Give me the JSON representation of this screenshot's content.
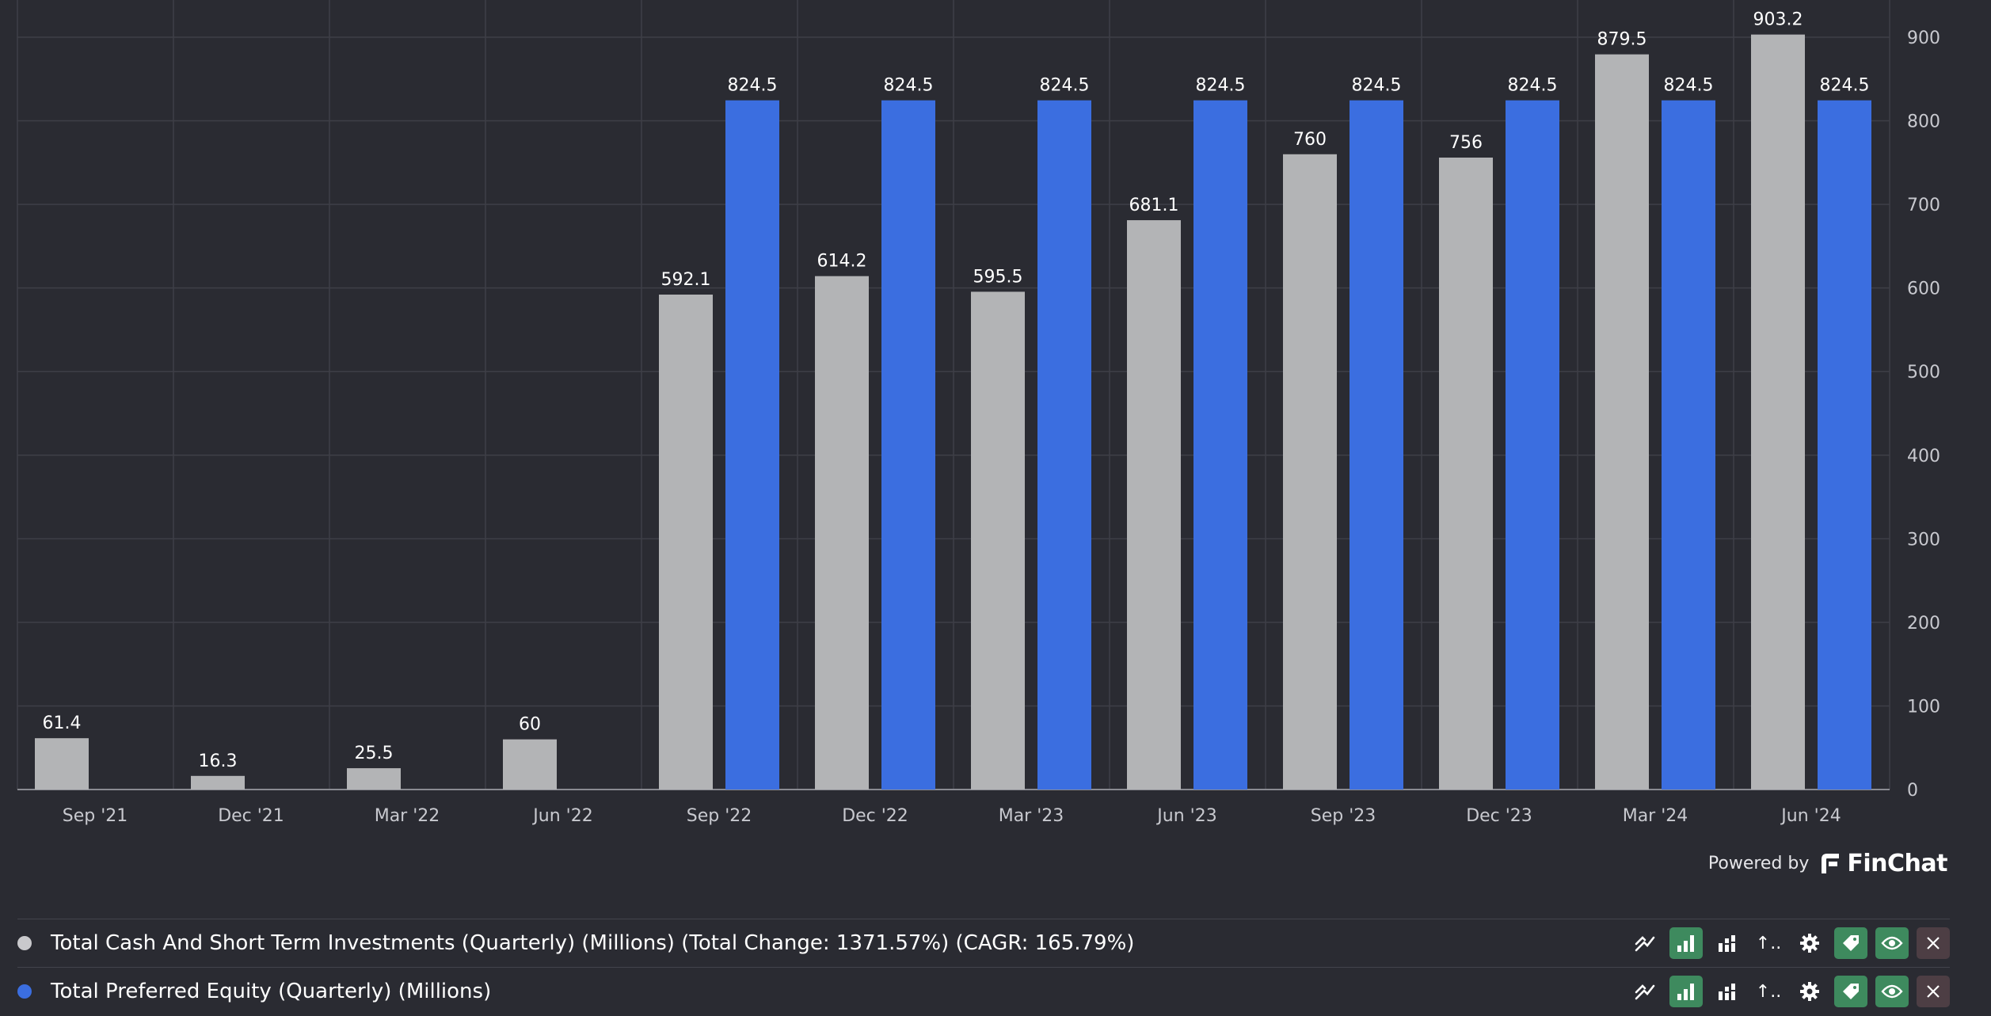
{
  "chart_data": {
    "type": "bar",
    "categories": [
      "Sep '21",
      "Dec '21",
      "Mar '22",
      "Jun '22",
      "Sep '22",
      "Dec '22",
      "Mar '23",
      "Jun '23",
      "Sep '23",
      "Dec '23",
      "Mar '24",
      "Jun '24"
    ],
    "series": [
      {
        "name": "Total Cash And Short Term Investments (Quarterly) (Millions) (Total Change: 1371.57%) (CAGR: 165.79%)",
        "color": "#b3b4b6",
        "values": [
          61.4,
          16.3,
          25.5,
          60,
          592.1,
          614.2,
          595.5,
          681.1,
          760,
          756,
          879.5,
          903.2
        ]
      },
      {
        "name": "Total Preferred Equity (Quarterly) (Millions)",
        "color": "#3b6ee0",
        "values": [
          null,
          null,
          null,
          null,
          824.5,
          824.5,
          824.5,
          824.5,
          824.5,
          824.5,
          824.5,
          824.5
        ]
      }
    ],
    "y_ticks": [
      0,
      100,
      200,
      300,
      400,
      500,
      600,
      700,
      800,
      900
    ],
    "ylim": [
      0,
      900
    ],
    "y_axis_side": "right",
    "grid": true,
    "legend_placement": "bottom"
  },
  "branding": {
    "powered_by": "Powered by",
    "brand": "FinChat"
  },
  "legend": [
    {
      "label": "Total Cash And Short Term Investments (Quarterly) (Millions) (Total Change: 1371.57%) (CAGR: 165.79%)",
      "color": "#c9c9cc"
    },
    {
      "label": "Total Preferred Equity (Quarterly) (Millions)",
      "color": "#3b6ee0"
    }
  ],
  "controls": {
    "line": "line-chart-icon",
    "bar": "bar-chart-icon",
    "stacked": "stacked-bar-icon",
    "axis": "axis-icon",
    "axis_text": "↑..",
    "settings": "gear-icon",
    "tag": "tag-icon",
    "eye": "eye-icon",
    "close": "close-icon"
  }
}
